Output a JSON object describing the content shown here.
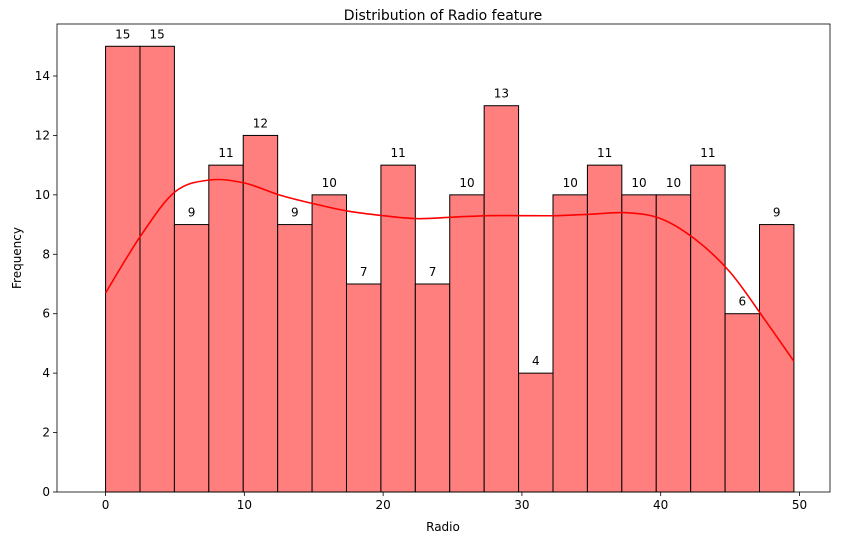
{
  "chart_data": {
    "type": "bar",
    "title": "Distribution of Radio feature",
    "xlabel": "Radio",
    "ylabel": "Frequency",
    "xlim": [
      -3.5,
      52.2
    ],
    "ylim": [
      0,
      15.75
    ],
    "xticks": [
      0,
      10,
      20,
      30,
      40,
      50
    ],
    "yticks": [
      0,
      2,
      4,
      6,
      8,
      10,
      12,
      14
    ],
    "bin_edges": [
      0,
      2.48,
      4.96,
      7.44,
      9.92,
      12.4,
      14.88,
      17.36,
      19.84,
      22.32,
      24.8,
      27.28,
      29.76,
      32.24,
      34.72,
      37.2,
      39.68,
      42.16,
      44.64,
      47.12,
      49.6
    ],
    "values": [
      15,
      15,
      9,
      11,
      12,
      9,
      10,
      7,
      11,
      7,
      10,
      13,
      4,
      10,
      11,
      10,
      10,
      11,
      6,
      9
    ],
    "data_labels": [
      "15",
      "15",
      "9",
      "11",
      "12",
      "9",
      "10",
      "7",
      "11",
      "7",
      "10",
      "13",
      "4",
      "10",
      "11",
      "10",
      "10",
      "11",
      "6",
      "9"
    ],
    "kde": {
      "x": [
        0,
        2.5,
        5,
        7.5,
        10,
        12.5,
        15,
        17.5,
        20,
        22.5,
        25,
        27.5,
        30,
        32.5,
        35,
        37.5,
        40,
        42.5,
        45,
        47.5,
        49.6
      ],
      "y": [
        6.7,
        8.6,
        10.1,
        10.5,
        10.4,
        10.0,
        9.7,
        9.45,
        9.3,
        9.2,
        9.25,
        9.3,
        9.3,
        9.3,
        9.35,
        9.4,
        9.2,
        8.5,
        7.4,
        5.8,
        4.4
      ]
    },
    "grid": false,
    "colors": {
      "bar_fill": "#ff7f7f",
      "bar_edge": "#000000",
      "kde_line": "#ff0000"
    }
  }
}
